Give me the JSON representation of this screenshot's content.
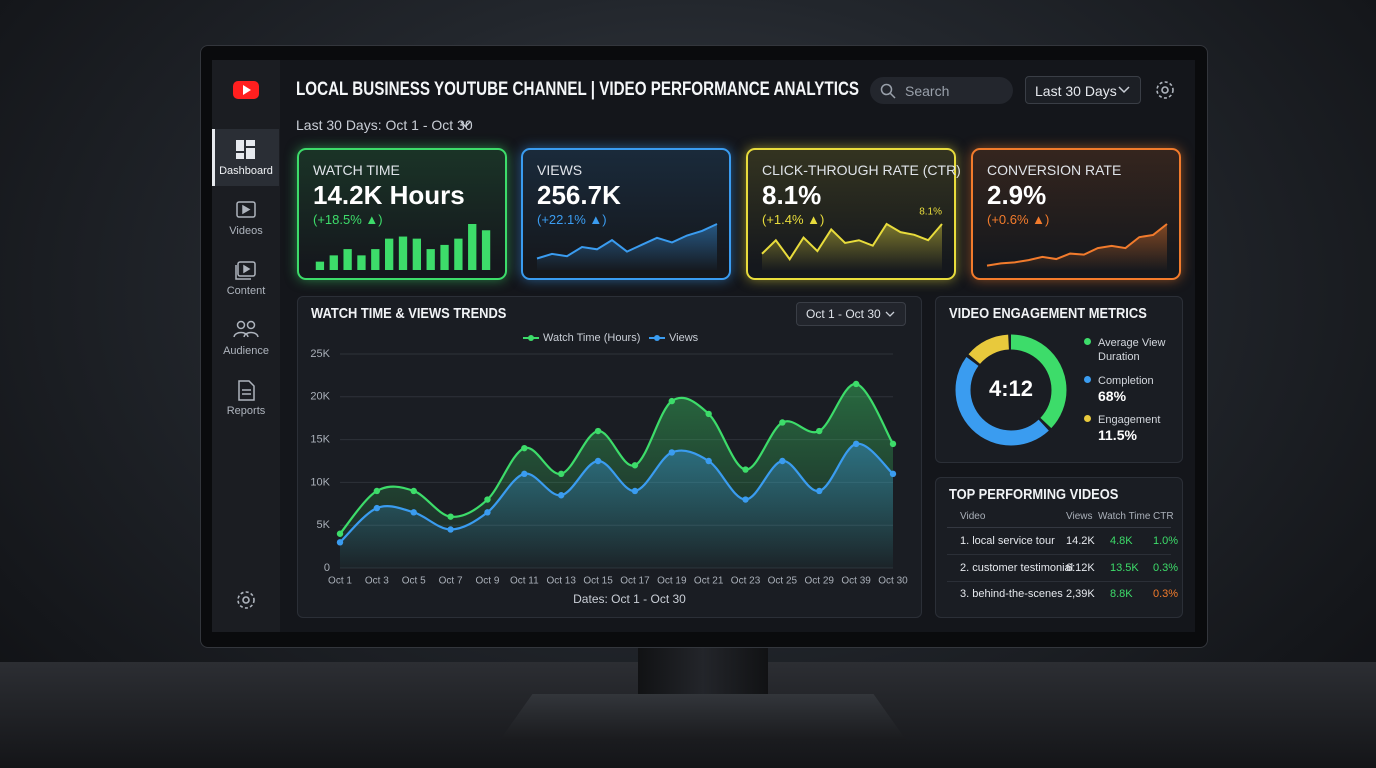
{
  "sidebar": {
    "items": [
      "Dashboard",
      "Videos",
      "Content",
      "Audience",
      "Reports"
    ]
  },
  "header": {
    "title": "LOCAL BUSINESS YOUTUBE CHANNEL | VIDEO PERFORMANCE ANALYTICS",
    "search_placeholder": "Search",
    "range": "Last 30 Days",
    "subtitle": "Last 30 Days: Oct 1 - Oct 30"
  },
  "kpis": [
    {
      "label": "WATCH TIME",
      "value": "14.2K Hours",
      "change": "(+18.5% ▲)",
      "color": "#3ddc6a",
      "spark": {
        "type": "bar",
        "values": [
          8,
          14,
          20,
          14,
          20,
          30,
          32,
          30,
          20,
          24,
          30,
          44,
          38
        ]
      }
    },
    {
      "label": "VIEWS",
      "value": "256.7K",
      "change": "(+22.1% ▲)",
      "color": "#3a9cf0",
      "spark": {
        "type": "line",
        "values": [
          10,
          14,
          12,
          20,
          18,
          26,
          16,
          22,
          28,
          24,
          30,
          34,
          40
        ]
      }
    },
    {
      "label": "CLICK-THROUGH RATE (CTR)",
      "value": "8.1%",
      "change": "(+1.4% ▲)",
      "color": "#e8dc3c",
      "spark": {
        "type": "line",
        "values": [
          12,
          22,
          8,
          24,
          14,
          30,
          20,
          22,
          18,
          34,
          28,
          26,
          22,
          34
        ],
        "end_label": "8.1%"
      }
    },
    {
      "label": "CONVERSION RATE",
      "value": "2.9%",
      "change": "(+0.6% ▲)",
      "color": "#f27b2c",
      "spark": {
        "type": "line",
        "values": [
          4,
          6,
          7,
          9,
          12,
          10,
          15,
          14,
          20,
          22,
          20,
          30,
          32,
          42
        ]
      }
    }
  ],
  "chart_data": {
    "type": "line",
    "title": "WATCH TIME & VIEWS TRENDS",
    "range": "Oct 1 - Oct 30",
    "x_label": "Dates: Oct 1 - Oct 30",
    "categories": [
      "Oct 1",
      "Oct 3",
      "Oct 5",
      "Oct 7",
      "Oct 9",
      "Oct 11",
      "Oct 13",
      "Oct 15",
      "Oct 17",
      "Oct 19",
      "Oct 21",
      "Oct 23",
      "Oct 25",
      "Oct 29",
      "Oct 39",
      "Oct 30"
    ],
    "series": [
      {
        "name": "Watch Time (Hours)",
        "color": "#3ddc6a",
        "values": [
          4000,
          9000,
          9000,
          6000,
          8000,
          14000,
          11000,
          16000,
          12000,
          19500,
          18000,
          11500,
          17000,
          16000,
          21500,
          14500
        ]
      },
      {
        "name": "Views",
        "color": "#3a9cf0",
        "values": [
          3000,
          7000,
          6500,
          4500,
          6500,
          11000,
          8500,
          12500,
          9000,
          13500,
          12500,
          8000,
          12500,
          9000,
          14500,
          11000
        ]
      }
    ],
    "ylim": [
      0,
      25000
    ],
    "yticks": [
      0,
      {
        "value": 5000,
        "label": "5K"
      },
      {
        "value": 10000,
        "label": "10K"
      },
      {
        "value": 15000,
        "label": "15K"
      },
      {
        "value": 20000,
        "label": "20K"
      },
      {
        "value": 25000,
        "label": "25K"
      }
    ],
    "grid": true
  },
  "engagement": {
    "title": "VIDEO ENGAGEMENT METRICS",
    "center": "4:12",
    "items": [
      {
        "name": "Average View Duration",
        "color": "#3ddc6a",
        "share": 38
      },
      {
        "name": "Completion",
        "value": "68%",
        "color": "#3a9cf0",
        "share": 48
      },
      {
        "name": "Engagement",
        "value": "11.5%",
        "color": "#e8c93c",
        "share": 14
      }
    ]
  },
  "top_videos": {
    "title": "TOP PERFORMING VIDEOS",
    "columns": [
      "Video",
      "Views",
      "Watch Time",
      "CTR"
    ],
    "rows": [
      [
        "1. local service tour",
        "14.2K",
        "4.8K",
        "1.0%"
      ],
      [
        "2. customer testimonial",
        "6:12K",
        "13.5K",
        "0.3%"
      ],
      [
        "3. behind-the-scenes",
        "2,39K",
        "8.8K",
        "0.3%"
      ]
    ]
  }
}
